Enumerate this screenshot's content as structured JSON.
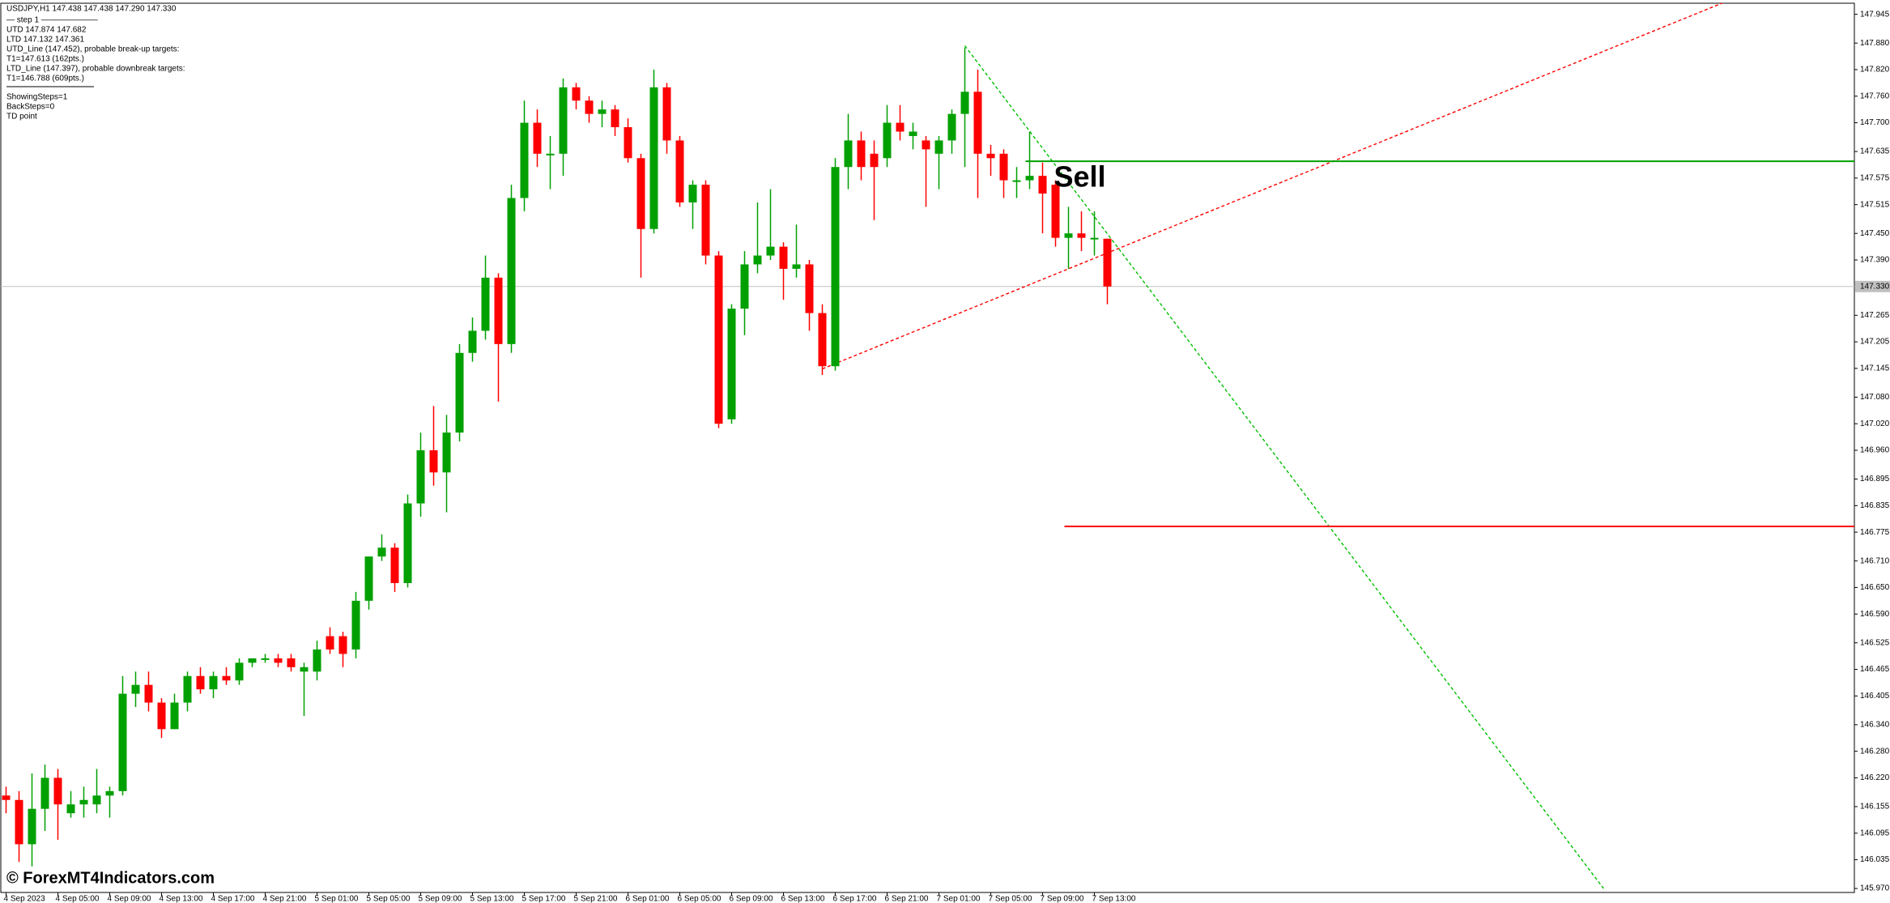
{
  "chart_data": {
    "type": "candlestick",
    "title": "USDJPY,H1  147.438 147.438 147.290 147.330",
    "info_lines": [
      "—   step 1   ———————",
      "UTD 147.874  147.682",
      "LTD  147.132  147.361",
      "UTD_Line (147.452), probable break-up targets:",
      "T1=147.613 (162pts.)",
      "LTD_Line (147.397), probable downbreak targets:",
      "T1=146.788 (609pts.)"
    ],
    "settings_lines": [
      "ShowingSteps=1",
      "BackSteps=0",
      "TD point"
    ],
    "annotation": "Sell",
    "watermark": "© ForexMT4Indicators.com",
    "up_color": "#00a000",
    "down_color": "#ff0000",
    "categories": [
      "4 Sep 2023",
      null,
      null,
      null,
      "4 Sep 05:00",
      null,
      null,
      null,
      "4 Sep 09:00",
      null,
      null,
      null,
      "4 Sep 13:00",
      null,
      null,
      null,
      "4 Sep 17:00",
      null,
      null,
      null,
      "4 Sep 21:00",
      null,
      null,
      null,
      "5 Sep 01:00",
      null,
      null,
      null,
      "5 Sep 05:00",
      null,
      null,
      null,
      "5 Sep 09:00",
      null,
      null,
      null,
      "5 Sep 13:00",
      null,
      null,
      null,
      "5 Sep 17:00",
      null,
      null,
      null,
      "5 Sep 21:00",
      null,
      null,
      null,
      "6 Sep 01:00",
      null,
      null,
      null,
      "6 Sep 05:00",
      null,
      null,
      null,
      "6 Sep 09:00",
      null,
      null,
      null,
      "6 Sep 13:00",
      null,
      null,
      null,
      "6 Sep 17:00",
      null,
      null,
      null,
      "6 Sep 21:00",
      null,
      null,
      null,
      "7 Sep 01:00",
      null,
      null,
      null,
      "7 Sep 05:00",
      null,
      null,
      null,
      "7 Sep 09:00",
      null,
      null,
      null,
      "7 Sep 13:00",
      null
    ],
    "open": [
      146.18,
      146.17,
      146.07,
      146.15,
      146.22,
      146.14,
      146.16,
      146.16,
      146.18,
      146.19,
      146.41,
      146.43,
      146.39,
      146.33,
      146.39,
      146.45,
      146.42,
      146.45,
      146.44,
      146.48,
      146.49,
      146.49,
      146.49,
      146.46,
      146.46,
      146.54,
      146.54,
      146.51,
      146.62,
      146.72,
      146.74,
      146.66,
      146.84,
      146.96,
      146.91,
      147.0,
      147.18,
      147.23,
      147.35,
      147.2,
      147.53,
      147.7,
      147.63,
      147.63,
      147.78,
      147.75,
      147.72,
      147.73,
      147.69,
      147.62,
      147.46,
      147.78,
      147.66,
      147.52,
      147.56,
      147.4,
      147.03,
      147.28,
      147.38,
      147.4,
      147.42,
      147.37,
      147.38,
      147.27,
      147.15,
      147.6,
      147.66,
      147.63,
      147.62,
      147.7,
      147.67,
      147.66,
      147.63,
      147.66,
      147.72,
      147.77,
      147.63,
      147.63,
      147.57,
      147.57,
      147.58,
      147.56,
      147.44,
      147.45,
      147.44,
      147.438
    ],
    "high": [
      146.2,
      146.19,
      146.23,
      146.25,
      146.24,
      146.19,
      146.2,
      146.24,
      146.2,
      146.45,
      146.46,
      146.46,
      146.4,
      146.41,
      146.46,
      146.47,
      146.46,
      146.47,
      146.49,
      146.49,
      146.5,
      146.5,
      146.5,
      146.48,
      146.53,
      146.56,
      146.55,
      146.64,
      146.72,
      146.77,
      146.75,
      146.86,
      147.0,
      147.06,
      147.04,
      147.2,
      147.26,
      147.4,
      147.36,
      147.56,
      147.75,
      147.73,
      147.67,
      147.8,
      147.79,
      147.76,
      147.75,
      147.74,
      147.71,
      147.63,
      147.82,
      147.79,
      147.67,
      147.57,
      147.57,
      147.41,
      147.29,
      147.41,
      147.52,
      147.55,
      147.43,
      147.47,
      147.39,
      147.29,
      147.62,
      147.72,
      147.68,
      147.66,
      147.74,
      147.74,
      147.7,
      147.67,
      147.67,
      147.73,
      147.87,
      147.82,
      147.65,
      147.64,
      147.6,
      147.68,
      147.61,
      147.57,
      147.51,
      147.5,
      147.5,
      147.438
    ],
    "low": [
      146.14,
      146.03,
      146.02,
      146.1,
      146.08,
      146.13,
      146.13,
      146.14,
      146.13,
      146.18,
      146.38,
      146.37,
      146.31,
      146.33,
      146.37,
      146.41,
      146.4,
      146.43,
      146.43,
      146.47,
      146.48,
      146.47,
      146.46,
      146.36,
      146.44,
      146.5,
      146.47,
      146.49,
      146.6,
      146.71,
      146.64,
      146.65,
      146.81,
      146.88,
      146.82,
      146.98,
      147.16,
      147.21,
      147.07,
      147.18,
      147.5,
      147.6,
      147.55,
      147.58,
      147.73,
      147.7,
      147.69,
      147.67,
      147.61,
      147.35,
      147.45,
      147.63,
      147.51,
      147.46,
      147.38,
      147.01,
      147.02,
      147.22,
      147.36,
      147.39,
      147.3,
      147.35,
      147.23,
      147.13,
      147.14,
      147.55,
      147.57,
      147.48,
      147.6,
      147.66,
      147.64,
      147.51,
      147.55,
      147.63,
      147.6,
      147.53,
      147.58,
      147.53,
      147.53,
      147.55,
      147.45,
      147.42,
      147.37,
      147.41,
      147.4,
      147.29
    ],
    "close": [
      146.17,
      146.07,
      146.15,
      146.22,
      146.16,
      146.16,
      146.17,
      146.18,
      146.19,
      146.41,
      146.43,
      146.39,
      146.33,
      146.39,
      146.45,
      146.42,
      146.45,
      146.44,
      146.48,
      146.49,
      146.49,
      146.48,
      146.47,
      146.47,
      146.51,
      146.51,
      146.5,
      146.62,
      146.72,
      146.74,
      146.66,
      146.84,
      146.96,
      146.91,
      147.0,
      147.18,
      147.23,
      147.35,
      147.2,
      147.53,
      147.7,
      147.63,
      147.63,
      147.78,
      147.75,
      147.72,
      147.73,
      147.69,
      147.62,
      147.46,
      147.78,
      147.66,
      147.52,
      147.56,
      147.4,
      147.02,
      147.28,
      147.38,
      147.4,
      147.42,
      147.37,
      147.38,
      147.27,
      147.15,
      147.6,
      147.66,
      147.6,
      147.6,
      147.7,
      147.68,
      147.68,
      147.64,
      147.66,
      147.72,
      147.77,
      147.63,
      147.62,
      147.57,
      147.57,
      147.58,
      147.54,
      147.44,
      147.45,
      147.44,
      147.44,
      147.33
    ],
    "current_price": {
      "value": 147.33,
      "label": "147.330"
    },
    "levels": [
      {
        "price": 147.613,
        "color": "#00a000",
        "from": 79
      },
      {
        "price": 146.788,
        "color": "#ff0000",
        "from": 82
      }
    ],
    "trendlines": [
      {
        "color": "#ff0000",
        "from": [
          63,
          147.144
        ],
        "to": [
          132.6,
          147.972
        ]
      },
      {
        "color": "#00c000",
        "from": [
          74,
          147.874
        ],
        "to": [
          123.3,
          145.97
        ]
      }
    ],
    "ylim": [
      145.961,
      147.97
    ],
    "yticks": [
      {
        "value": 147.945,
        "label": "147.945"
      },
      {
        "value": 147.88,
        "label": "147.880"
      },
      {
        "value": 147.82,
        "label": "147.820"
      },
      {
        "value": 147.76,
        "label": "147.760"
      },
      {
        "value": 147.7,
        "label": "147.700"
      },
      {
        "value": 147.635,
        "label": "147.635"
      },
      {
        "value": 147.575,
        "label": "147.575"
      },
      {
        "value": 147.515,
        "label": "147.515"
      },
      {
        "value": 147.45,
        "label": "147.450"
      },
      {
        "value": 147.39,
        "label": "147.390"
      },
      {
        "value": 147.265,
        "label": "147.265"
      },
      {
        "value": 147.205,
        "label": "147.205"
      },
      {
        "value": 147.145,
        "label": "147.145"
      },
      {
        "value": 147.08,
        "label": "147.080"
      },
      {
        "value": 147.02,
        "label": "147.020"
      },
      {
        "value": 146.96,
        "label": "146.960"
      },
      {
        "value": 146.895,
        "label": "146.895"
      },
      {
        "value": 146.835,
        "label": "146.835"
      },
      {
        "value": 146.775,
        "label": "146.775"
      },
      {
        "value": 146.71,
        "label": "146.710"
      },
      {
        "value": 146.65,
        "label": "146.650"
      },
      {
        "value": 146.59,
        "label": "146.590"
      },
      {
        "value": 146.525,
        "label": "146.525"
      },
      {
        "value": 146.465,
        "label": "146.465"
      },
      {
        "value": 146.405,
        "label": "146.405"
      },
      {
        "value": 146.34,
        "label": "146.340"
      },
      {
        "value": 146.28,
        "label": "146.280"
      },
      {
        "value": 146.22,
        "label": "146.220"
      },
      {
        "value": 146.155,
        "label": "146.155"
      },
      {
        "value": 146.095,
        "label": "146.095"
      },
      {
        "value": 146.035,
        "label": "146.035"
      },
      {
        "value": 145.97,
        "label": "145.970"
      }
    ]
  }
}
